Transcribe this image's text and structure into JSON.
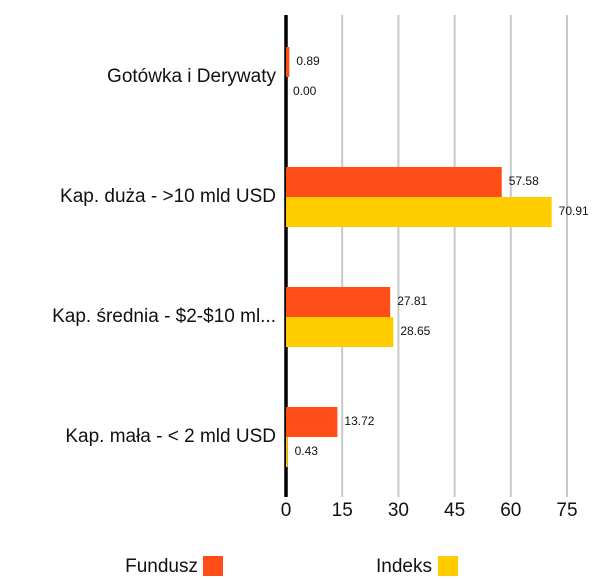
{
  "chart_data": {
    "type": "hbar",
    "categories": [
      "Gotówka i Derywaty",
      "Kap. duża - >10 mld USD",
      "Kap. średnia - $2-$10 ml...",
      "Kap. mała - < 2 mld USD"
    ],
    "series": [
      {
        "name": "Fundusz",
        "color": "#ff4d17",
        "values": [
          0.89,
          57.58,
          27.81,
          13.72
        ],
        "value_labels": [
          "0.89",
          "57.58",
          "27.81",
          "13.72"
        ]
      },
      {
        "name": "Indeks",
        "color": "#ffcc00",
        "values": [
          0,
          70.91,
          28.65,
          0.43
        ],
        "value_labels": [
          "0.00",
          "70.91",
          "28.65",
          "0.43"
        ]
      }
    ],
    "xlim": [
      0,
      75
    ],
    "xticks": [
      0,
      15,
      30,
      45,
      60,
      75
    ],
    "grid": true
  }
}
